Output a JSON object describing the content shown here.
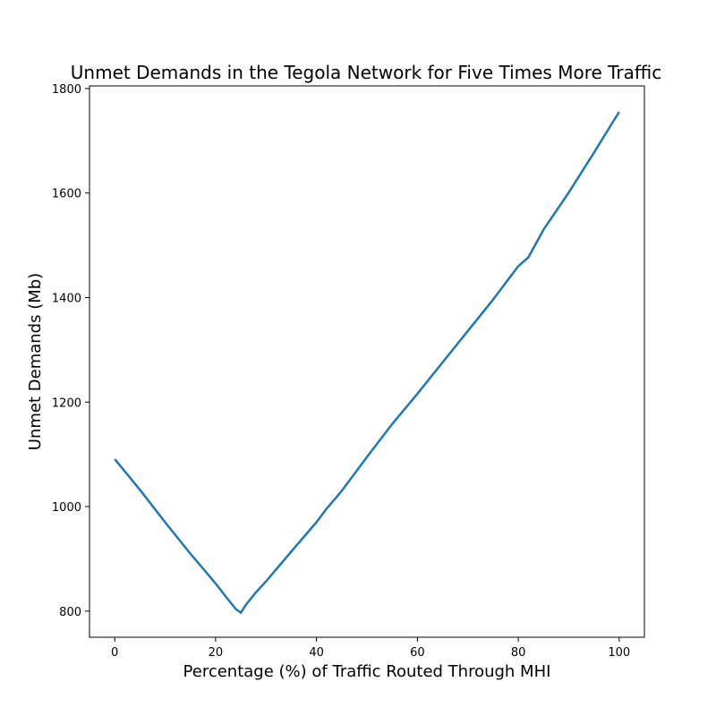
{
  "chart_data": {
    "type": "line",
    "title": "Unmet Demands in the Tegola Network for Five Times More Traffic",
    "xlabel": "Percentage (%) of Traffic Routed Through MHI",
    "ylabel": "Unmet Demands (Mb)",
    "xlim": [
      -5,
      105
    ],
    "ylim": [
      750,
      1805
    ],
    "xticks": [
      0,
      20,
      40,
      60,
      80,
      100
    ],
    "yticks": [
      800,
      1000,
      1200,
      1400,
      1600,
      1800
    ],
    "grid": false,
    "line_color": "#1f77b4",
    "series": [
      {
        "x": [
          0,
          5,
          10,
          15,
          20,
          22,
          24,
          25,
          26,
          28,
          30,
          35,
          40,
          42,
          45,
          50,
          55,
          60,
          65,
          70,
          75,
          80,
          82,
          85,
          90,
          95,
          99,
          100
        ],
        "y": [
          1091,
          1032,
          970,
          910,
          853,
          828,
          804,
          797,
          812,
          836,
          857,
          914,
          970,
          996,
          1030,
          1095,
          1158,
          1216,
          1276,
          1336,
          1396,
          1460,
          1477,
          1530,
          1601,
          1677,
          1740,
          1755
        ]
      }
    ]
  }
}
